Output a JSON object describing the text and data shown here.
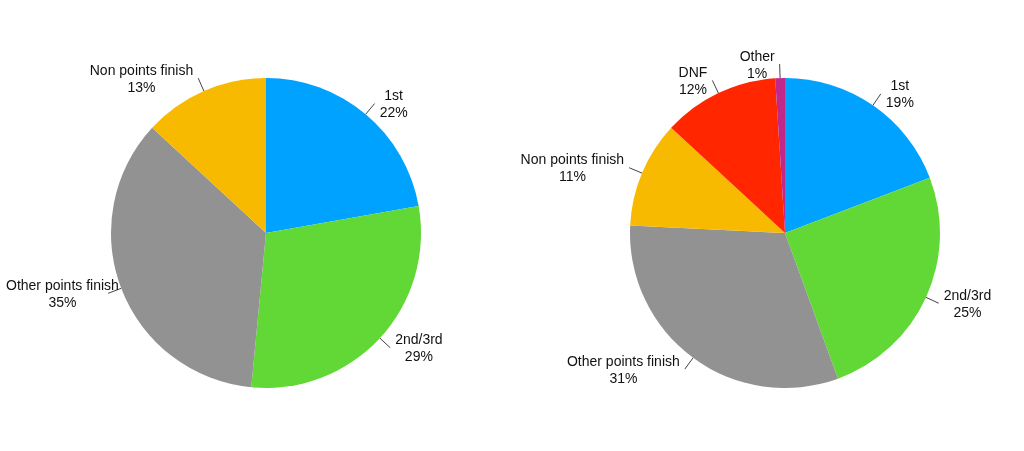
{
  "chart_data": [
    {
      "type": "pie",
      "categories": [
        "1st",
        "2nd/3rd",
        "Other points finish",
        "Non points finish"
      ],
      "values": [
        22,
        29,
        35,
        13
      ],
      "value_labels": [
        "22%",
        "29%",
        "35%",
        "13%"
      ],
      "colors": [
        "#00a2ff",
        "#61d836",
        "#929292",
        "#f8ba00"
      ]
    },
    {
      "type": "pie",
      "categories": [
        "1st",
        "2nd/3rd",
        "Other points finish",
        "Non points finish",
        "DNF",
        "Other"
      ],
      "values": [
        19,
        25,
        31,
        11,
        12,
        1
      ],
      "value_labels": [
        "19%",
        "25%",
        "31%",
        "11%",
        "12%",
        "1%"
      ],
      "colors": [
        "#00a2ff",
        "#61d836",
        "#929292",
        "#f8ba00",
        "#ff2600",
        "#c0288c"
      ]
    }
  ]
}
